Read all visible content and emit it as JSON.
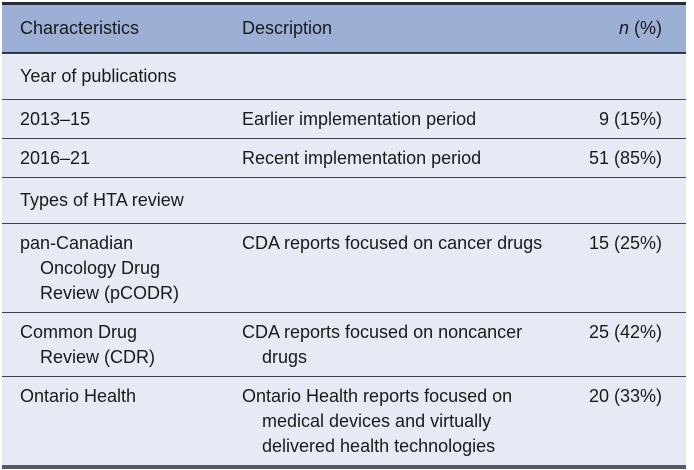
{
  "table": {
    "header": {
      "characteristics": "Characteristics",
      "description": "Description",
      "n_symbol": "n",
      "n_unit": "(%)"
    },
    "rows": [
      {
        "type": "section",
        "label": "Year of publications"
      },
      {
        "type": "data",
        "characteristic": [
          "2013–15"
        ],
        "description": [
          "Earlier implementation period"
        ],
        "n": "9 (15%)"
      },
      {
        "type": "data",
        "characteristic": [
          "2016–21"
        ],
        "description": [
          "Recent implementation period"
        ],
        "n": "51 (85%)"
      },
      {
        "type": "section",
        "label": "Types of HTA review"
      },
      {
        "type": "data",
        "characteristic": [
          "pan-Canadian",
          "Oncology Drug",
          "Review (pCODR)"
        ],
        "description": [
          "CDA reports focused on cancer drugs"
        ],
        "n": "15 (25%)"
      },
      {
        "type": "data",
        "characteristic": [
          "Common Drug",
          "Review (CDR)"
        ],
        "description": [
          "CDA reports focused on noncancer",
          "drugs"
        ],
        "n": "25 (42%)"
      },
      {
        "type": "data",
        "characteristic": [
          "Ontario Health"
        ],
        "description": [
          "Ontario Health reports focused on",
          "medical devices and virtually",
          "delivered health technologies"
        ],
        "n": "20 (33%)"
      }
    ],
    "colors": {
      "header_bg": "#9cafd5",
      "row_bg": "#e6eaf5",
      "rule": "#3b4350",
      "top_border": "#262d39",
      "bottom_border": "#525a66",
      "text": "#1a1a1a"
    }
  }
}
